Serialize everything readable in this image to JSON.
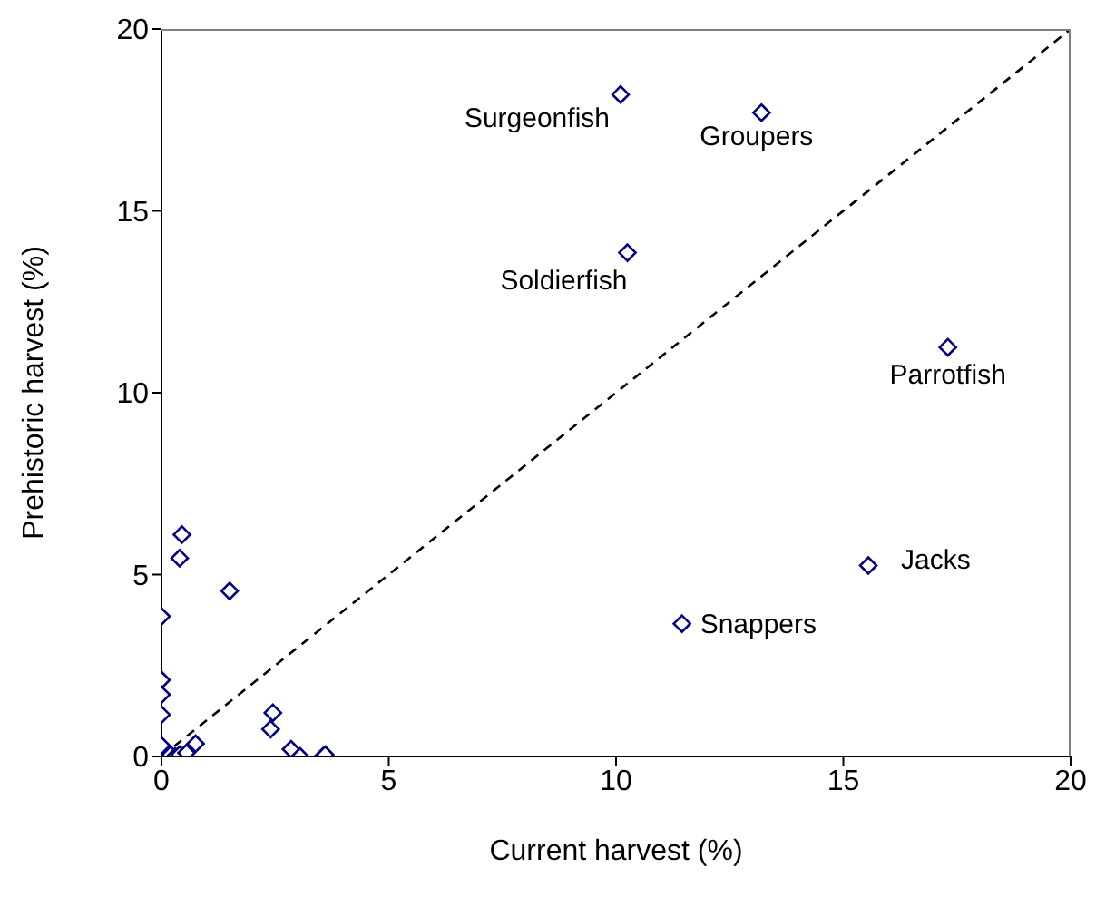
{
  "chart_data": {
    "type": "scatter",
    "xlabel": "Current harvest (%)",
    "ylabel": "Prehistoric harvest (%)",
    "xlim": [
      0,
      20
    ],
    "ylim": [
      0,
      20
    ],
    "xticks": [
      0,
      5,
      10,
      15,
      20
    ],
    "yticks": [
      0,
      5,
      10,
      15,
      20
    ],
    "grid": false,
    "legend": false,
    "marker": "diamond",
    "series": [
      {
        "type": "scatter",
        "color": "#000080",
        "x": [
          10.1,
          13.2,
          10.25,
          17.3,
          15.55,
          11.45,
          0.45,
          0.4,
          1.5,
          0,
          0,
          0,
          0,
          0,
          0.2,
          0.3,
          0.4,
          0.55,
          0.75,
          2.45,
          2.4,
          2.85,
          3.05,
          3.55,
          3.6
        ],
        "values": [
          18.2,
          17.7,
          13.85,
          11.25,
          5.25,
          3.65,
          6.1,
          5.45,
          4.55,
          3.85,
          2.1,
          1.7,
          1.15,
          0.3,
          0.05,
          0,
          0.05,
          0.1,
          0.35,
          1.2,
          0.75,
          0.2,
          0,
          0,
          0.05
        ]
      },
      {
        "type": "line",
        "color": "#000000",
        "line_style": "dashed",
        "marker": "none",
        "x": [
          0,
          20
        ],
        "values": [
          0,
          20
        ]
      }
    ],
    "annotations": [
      {
        "text": "Surgeonfish",
        "x": 10.1,
        "y": 18.2
      },
      {
        "text": "Groupers",
        "x": 13.2,
        "y": 17.7
      },
      {
        "text": "Soldierfish",
        "x": 10.25,
        "y": 13.85
      },
      {
        "text": "Parrotfish",
        "x": 17.3,
        "y": 11.25
      },
      {
        "text": "Jacks",
        "x": 15.55,
        "y": 5.25
      },
      {
        "text": "Snappers",
        "x": 11.45,
        "y": 3.65
      }
    ]
  }
}
